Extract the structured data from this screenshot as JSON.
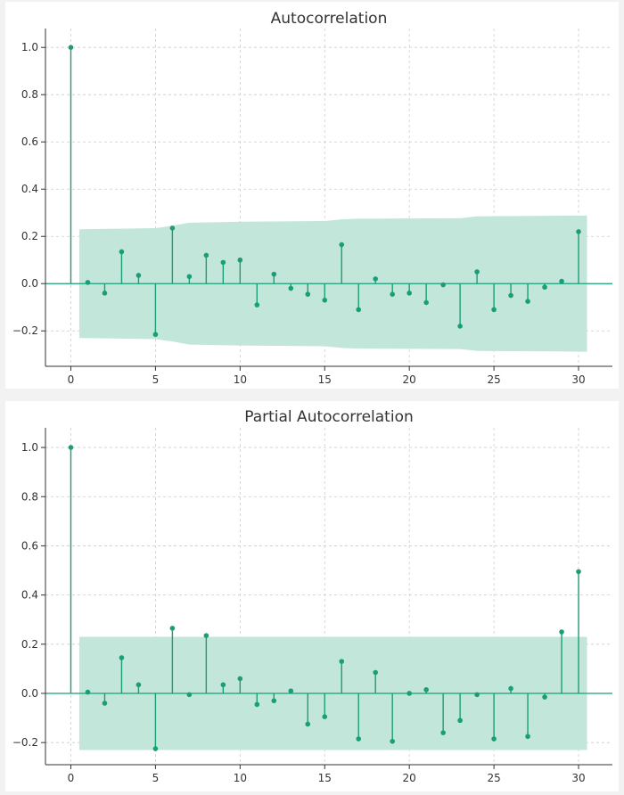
{
  "chart_data": [
    {
      "type": "stem",
      "title": "Autocorrelation",
      "xlabel": "",
      "ylabel": "",
      "xlim": [
        -1.5,
        32
      ],
      "ylim": [
        -0.35,
        1.08
      ],
      "xticks": [
        0,
        5,
        10,
        15,
        20,
        25,
        30
      ],
      "yticks": [
        -0.2,
        0.0,
        0.2,
        0.4,
        0.6,
        0.8,
        1.0
      ],
      "xtick_labels": [
        "0",
        "5",
        "10",
        "15",
        "20",
        "25",
        "30"
      ],
      "ytick_labels": [
        "−0.2",
        "0.0",
        "0.2",
        "0.4",
        "0.6",
        "0.8",
        "1.0"
      ],
      "grid": true,
      "color": "#1a9e77",
      "band_color": "#c2e6da",
      "x": [
        0,
        1,
        2,
        3,
        4,
        5,
        6,
        7,
        8,
        9,
        10,
        11,
        12,
        13,
        14,
        15,
        16,
        17,
        18,
        19,
        20,
        21,
        22,
        23,
        24,
        25,
        26,
        27,
        28,
        29,
        30
      ],
      "values": [
        1.0,
        0.005,
        -0.04,
        0.135,
        0.035,
        -0.215,
        0.235,
        0.03,
        0.12,
        0.09,
        0.1,
        -0.09,
        0.04,
        -0.02,
        -0.045,
        -0.07,
        0.165,
        -0.11,
        0.02,
        -0.045,
        -0.04,
        -0.08,
        -0.005,
        -0.18,
        0.05,
        -0.11,
        -0.05,
        -0.075,
        -0.015,
        0.01,
        0.22
      ],
      "confidence_band": {
        "x": [
          0.5,
          5,
          6,
          7,
          10,
          15,
          16,
          17,
          20,
          23,
          24,
          30.5
        ],
        "upper": [
          0.23,
          0.235,
          0.245,
          0.258,
          0.262,
          0.265,
          0.272,
          0.275,
          0.276,
          0.277,
          0.285,
          0.288
        ]
      }
    },
    {
      "type": "stem",
      "title": "Partial Autocorrelation",
      "xlabel": "",
      "ylabel": "",
      "xlim": [
        -1.5,
        32
      ],
      "ylim": [
        -0.29,
        1.08
      ],
      "xticks": [
        0,
        5,
        10,
        15,
        20,
        25,
        30
      ],
      "yticks": [
        -0.2,
        0.0,
        0.2,
        0.4,
        0.6,
        0.8,
        1.0
      ],
      "xtick_labels": [
        "0",
        "5",
        "10",
        "15",
        "20",
        "25",
        "30"
      ],
      "ytick_labels": [
        "−0.2",
        "0.0",
        "0.2",
        "0.4",
        "0.6",
        "0.8",
        "1.0"
      ],
      "grid": true,
      "color": "#1a9e77",
      "band_color": "#c2e6da",
      "x": [
        0,
        1,
        2,
        3,
        4,
        5,
        6,
        7,
        8,
        9,
        10,
        11,
        12,
        13,
        14,
        15,
        16,
        17,
        18,
        19,
        20,
        21,
        22,
        23,
        24,
        25,
        26,
        27,
        28,
        29,
        30
      ],
      "values": [
        1.0,
        0.005,
        -0.04,
        0.145,
        0.035,
        -0.225,
        0.265,
        -0.005,
        0.235,
        0.035,
        0.06,
        -0.045,
        -0.03,
        0.01,
        -0.125,
        -0.095,
        0.13,
        -0.185,
        0.085,
        -0.195,
        0.0,
        0.015,
        -0.16,
        -0.11,
        -0.005,
        -0.185,
        0.02,
        -0.175,
        -0.015,
        0.25,
        0.495
      ],
      "confidence_band": {
        "x": [
          0.5,
          30.5
        ],
        "upper": [
          0.23,
          0.23
        ]
      }
    }
  ]
}
